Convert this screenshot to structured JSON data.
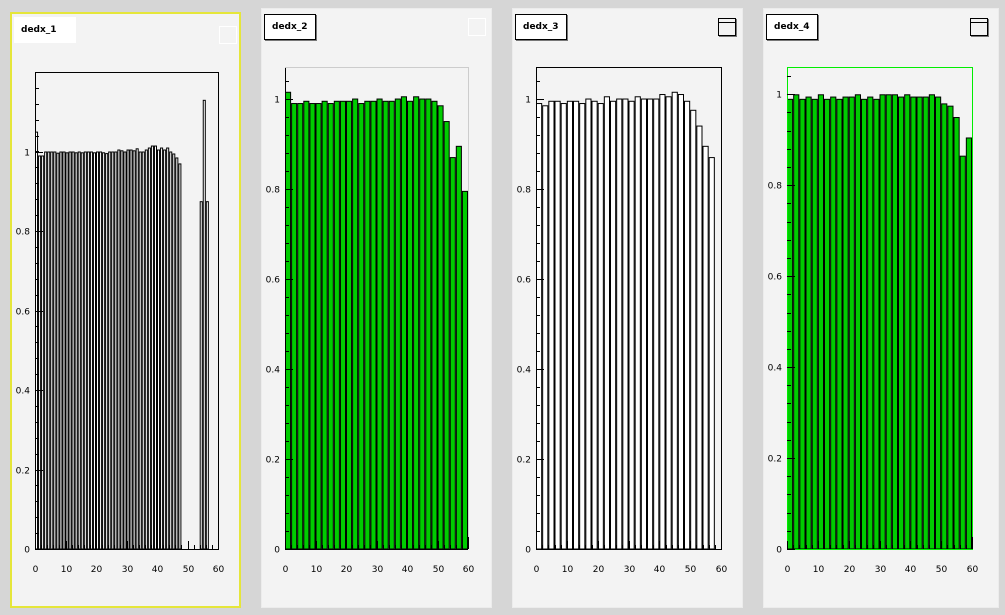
{
  "chart_data": [
    {
      "type": "bar",
      "title": "dedx_1",
      "fill_color": "#ffffff",
      "frame_color": "#000000",
      "x_ticks": [
        "0",
        "10",
        "20",
        "30",
        "40",
        "50",
        "60"
      ],
      "y_ticks": [
        "0",
        "0.2",
        "0.4",
        "0.6",
        "0.8",
        "1"
      ],
      "xlim": [
        0,
        60
      ],
      "ylim": [
        0,
        1.2
      ],
      "bin_width": 1,
      "values": [
        1.05,
        0.99,
        0.99,
        1.0,
        1.0,
        1.0,
        1.0,
        0.997,
        1.0,
        1.0,
        0.998,
        1.0,
        1.0,
        0.998,
        1.0,
        0.998,
        1.0,
        1.0,
        1.0,
        0.998,
        1.0,
        1.0,
        0.998,
        0.996,
        1.0,
        1.0,
        1.0,
        1.005,
        1.003,
        1.0,
        1.005,
        1.005,
        1.003,
        1.008,
        1.0,
        1.0,
        1.005,
        1.01,
        1.015,
        1.015,
        1.005,
        1.01,
        1.005,
        1.01,
        1.0,
        0.995,
        0.985,
        0.97,
        0.0,
        0.0,
        0.0,
        0.0,
        0.0,
        0.0,
        0.875,
        1.13,
        0.875,
        0.0,
        0.0,
        0.0
      ]
    },
    {
      "type": "bar",
      "title": "dedx_2",
      "fill_color": "#00cc00",
      "frame_color": "#000000",
      "x_ticks": [
        "0",
        "10",
        "20",
        "30",
        "40",
        "50",
        "60"
      ],
      "y_ticks": [
        "0",
        "0.2",
        "0.4",
        "0.6",
        "0.8",
        "1"
      ],
      "xlim": [
        0,
        60
      ],
      "ylim": [
        0,
        1.07
      ],
      "bin_width": 2,
      "values": [
        1.015,
        0.99,
        0.99,
        0.995,
        0.99,
        0.99,
        0.995,
        0.99,
        0.995,
        0.995,
        0.995,
        1.0,
        0.99,
        0.995,
        0.995,
        1.0,
        0.995,
        0.995,
        1.0,
        1.005,
        0.995,
        1.005,
        1.0,
        1.0,
        0.995,
        0.985,
        0.95,
        0.87,
        0.895,
        0.795
      ]
    },
    {
      "type": "bar",
      "title": "dedx_3",
      "fill_color": "#ffffff",
      "frame_color": "#000000",
      "x_ticks": [
        "0",
        "10",
        "20",
        "30",
        "40",
        "50",
        "60"
      ],
      "y_ticks": [
        "0",
        "0.2",
        "0.4",
        "0.6",
        "0.8",
        "1"
      ],
      "xlim": [
        0,
        60
      ],
      "ylim": [
        0,
        1.07
      ],
      "bin_width": 2,
      "values": [
        0.99,
        0.985,
        0.995,
        0.995,
        0.99,
        0.995,
        0.995,
        0.99,
        1.0,
        0.995,
        0.99,
        1.005,
        0.995,
        1.0,
        1.0,
        0.995,
        1.005,
        1.0,
        1.0,
        1.0,
        1.01,
        1.005,
        1.015,
        1.01,
        0.995,
        0.975,
        0.94,
        0.895,
        0.87,
        0.0
      ]
    },
    {
      "type": "bar",
      "title": "dedx_4",
      "fill_color": "#00cc00",
      "frame_color": "#00ee00",
      "x_ticks": [
        "0",
        "10",
        "20",
        "30",
        "40",
        "50",
        "60"
      ],
      "y_ticks": [
        "0",
        "0.2",
        "0.4",
        "0.6",
        "0.8",
        "1"
      ],
      "xlim": [
        0,
        60
      ],
      "ylim": [
        0,
        1.06
      ],
      "bin_width": 2,
      "values": [
        0.99,
        1.0,
        0.99,
        0.995,
        0.99,
        1.0,
        0.99,
        0.995,
        0.99,
        0.995,
        0.995,
        1.0,
        0.99,
        0.995,
        0.99,
        1.0,
        1.0,
        1.0,
        0.995,
        1.0,
        0.995,
        0.995,
        0.995,
        1.0,
        0.995,
        0.98,
        0.975,
        0.95,
        0.865,
        0.905
      ]
    }
  ]
}
